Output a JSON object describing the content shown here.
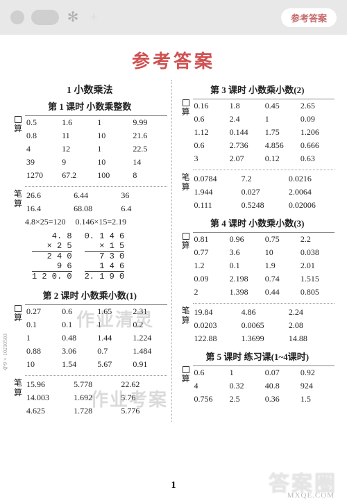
{
  "header": {
    "badge": "参考答案"
  },
  "title": "参考答案",
  "labels": {
    "kousuan": "算",
    "bisuan": "笔算"
  },
  "page_number": "1",
  "side_code": "今9×10210503",
  "watermarks": {
    "faint1": "作业清灵",
    "faint2": "作业考案",
    "brand": "答案圈",
    "site": "MXQE.COM"
  },
  "colors": {
    "title_color": "#d05050",
    "badge_text": "#c66a6a",
    "header_bg": "#e8e8e8",
    "text_color": "#222222",
    "divider_color": "#999999",
    "border_color": "#888888",
    "watermark_color": "rgba(150,150,150,0.35)"
  },
  "typography": {
    "title_fontsize_pt": 20,
    "lesson_title_fontsize_pt": 10,
    "body_fontsize_pt": 9,
    "font_family": "SimSun"
  },
  "left": {
    "chapter": "1 小数乘法",
    "lesson1": {
      "title": "第 1 课时 小数乘整数",
      "kousuan": [
        [
          "0.5",
          "1.6",
          "1",
          "9.99"
        ],
        [
          "0.8",
          "11",
          "10",
          "21.6"
        ],
        [
          "4",
          "12",
          "1",
          "22.5"
        ],
        [
          "39",
          "9",
          "10",
          "14"
        ],
        [
          "1270",
          "67.2",
          "100",
          "8"
        ]
      ],
      "bisuan": [
        [
          "26.6",
          "6.44",
          "36"
        ],
        [
          "16.4",
          "68.08",
          "6.4"
        ]
      ],
      "eqs": [
        "4.8×25=120",
        "0.146×15=2.19"
      ],
      "mul1": {
        "l0": "4. 8",
        "l1": "×   2 5",
        "l2": "2 4 0",
        "l3": "9 6  ",
        "l4": "1 2 0. 0"
      },
      "mul2": {
        "l0": "0. 1 4 6",
        "l1": "×     1 5",
        "l2": "7 3 0",
        "l3": "1 4 6  ",
        "l4": "2. 1 9 0"
      }
    },
    "lesson2": {
      "title": "第 2 课时 小数乘小数(1)",
      "kousuan": [
        [
          "0.27",
          "0.6",
          "1.65",
          "2.31"
        ],
        [
          "0.1",
          "0.1",
          "1",
          "0.2"
        ],
        [
          "1",
          "0.48",
          "1.44",
          "1.224"
        ],
        [
          "0.88",
          "3.06",
          "0.7",
          "1.484"
        ],
        [
          "10",
          "1.54",
          "5.67",
          "0.91"
        ]
      ],
      "bisuan": [
        [
          "15.96",
          "5.778",
          "22.62"
        ],
        [
          "14.003",
          "1.692",
          "5.76"
        ],
        [
          "4.625",
          "1.728",
          "5.776"
        ]
      ]
    }
  },
  "right": {
    "lesson3": {
      "title": "第 3 课时 小数乘小数(2)",
      "kousuan": [
        [
          "0.16",
          "1.8",
          "0.45",
          "2.65"
        ],
        [
          "0.6",
          "2.4",
          "1",
          "0.09"
        ],
        [
          "1.12",
          "0.144",
          "1.75",
          "1.206"
        ],
        [
          "0.6",
          "2.736",
          "4.856",
          "0.666"
        ],
        [
          "3",
          "2.07",
          "0.12",
          "0.63"
        ]
      ],
      "bisuan": [
        [
          "0.0784",
          "7.2",
          "0.0216"
        ],
        [
          "1.944",
          "0.027",
          "2.0064"
        ],
        [
          "0.111",
          "0.5248",
          "0.02006"
        ]
      ]
    },
    "lesson4": {
      "title": "第 4 课时 小数乘小数(3)",
      "kousuan": [
        [
          "0.81",
          "0.96",
          "0.75",
          "2.2"
        ],
        [
          "0.77",
          "3.6",
          "10",
          "0.038"
        ],
        [
          "1.2",
          "0.1",
          "1.9",
          "2.01"
        ],
        [
          "0.09",
          "2.198",
          "0.74",
          "1.515"
        ],
        [
          "2",
          "1.398",
          "0.44",
          "0.805"
        ]
      ],
      "bisuan": [
        [
          "19.84",
          "4.86",
          "2.24"
        ],
        [
          "0.0203",
          "0.0065",
          "2.08"
        ],
        [
          "122.88",
          "1.3699",
          "14.88"
        ]
      ]
    },
    "lesson5": {
      "title": "第 5 课时 练习课(1~4课时)",
      "kousuan": [
        [
          "0.6",
          "1",
          "0.07",
          "0.92"
        ],
        [
          "4",
          "0.32",
          "40.8",
          "924"
        ],
        [
          "0.756",
          "2.5",
          "0.36",
          "1.5"
        ]
      ]
    }
  }
}
